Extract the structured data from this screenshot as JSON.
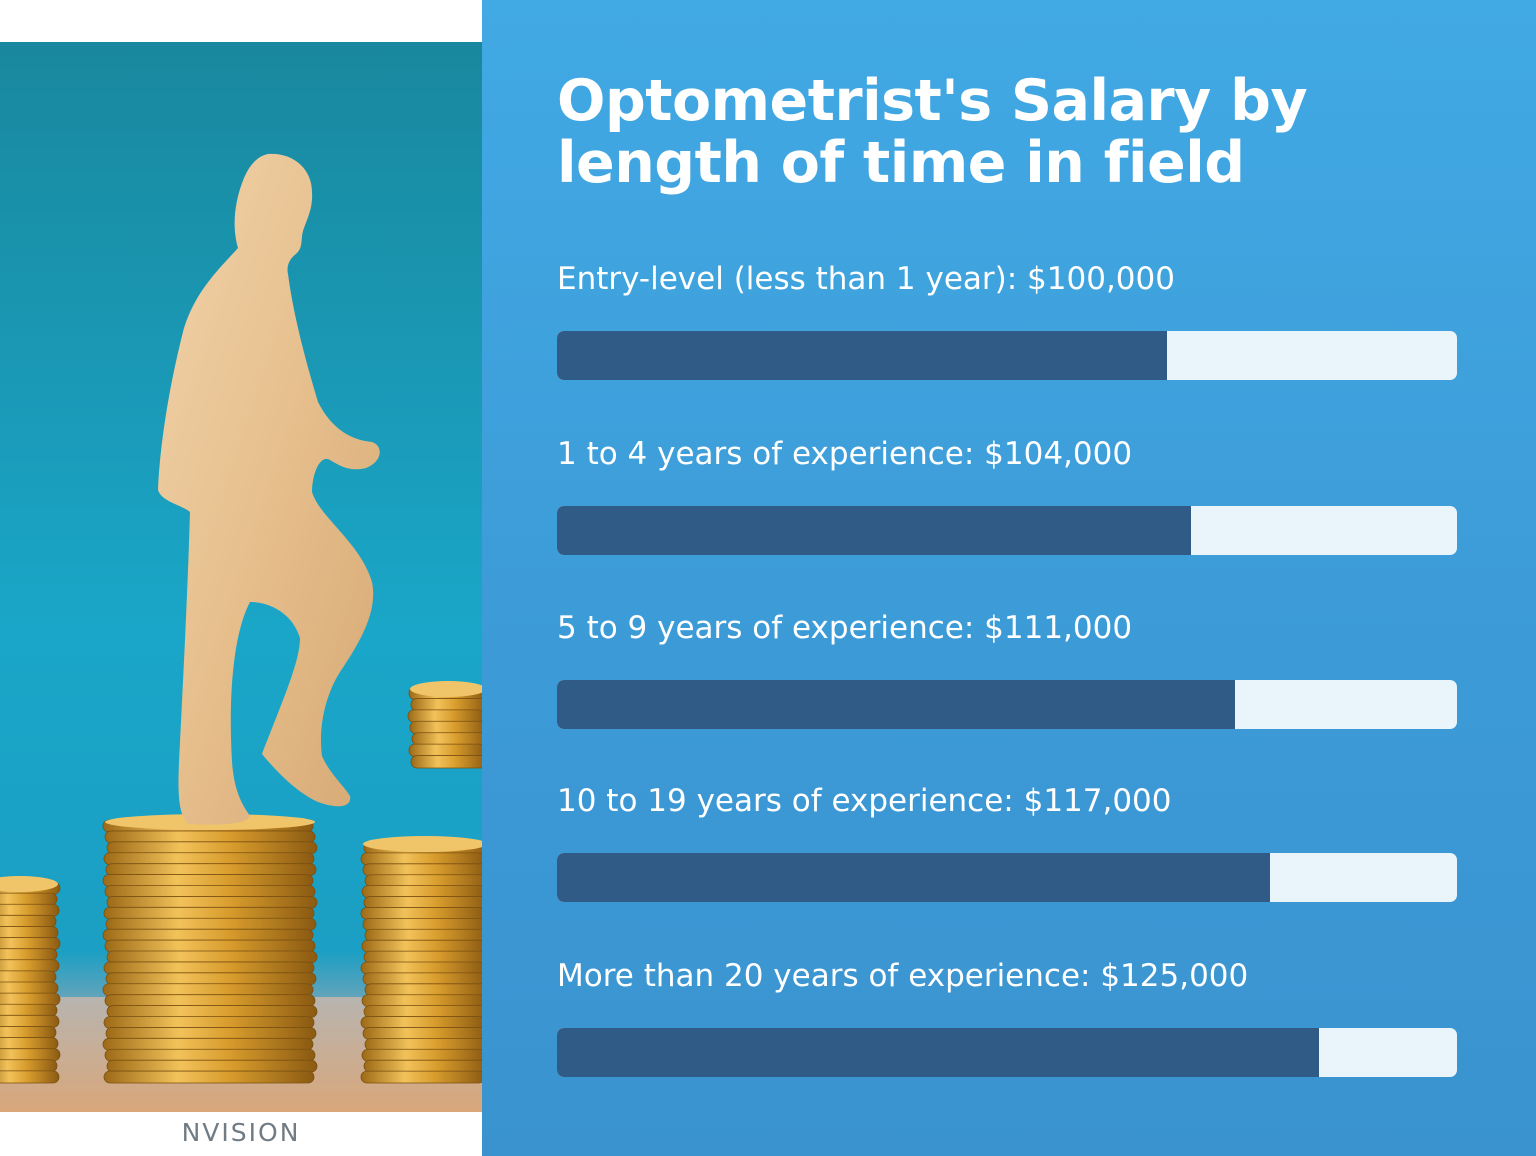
{
  "logo_text": "NVISION",
  "colors": {
    "panel_bg": "#3c9ad6",
    "bar_fill": "#305b87",
    "bar_track": "#eaf4fb",
    "text": "#ffffff"
  },
  "chart_data": {
    "type": "bar",
    "orientation": "horizontal",
    "title": "Optometrist's Salary by length of time in field",
    "grid": false,
    "series": [
      {
        "values": [
          100000,
          104000,
          111000,
          117000,
          125000
        ],
        "fill_fraction": [
          0.678,
          0.704,
          0.753,
          0.792,
          0.847
        ]
      }
    ],
    "categories": [
      "Entry-level (less than 1 year)",
      "1 to 4 years of experience",
      "5 to 9 years of experience",
      "10 to 19 years of experience",
      "More than 20 years of experience"
    ],
    "data_labels": [
      "Entry-level (less than 1 year): $100,000",
      "1 to 4 years of experience: $104,000",
      "5 to 9 years of experience: $111,000",
      "10 to 19 years of experience: $117,000",
      "More than 20 years of experience: $125,000"
    ]
  }
}
